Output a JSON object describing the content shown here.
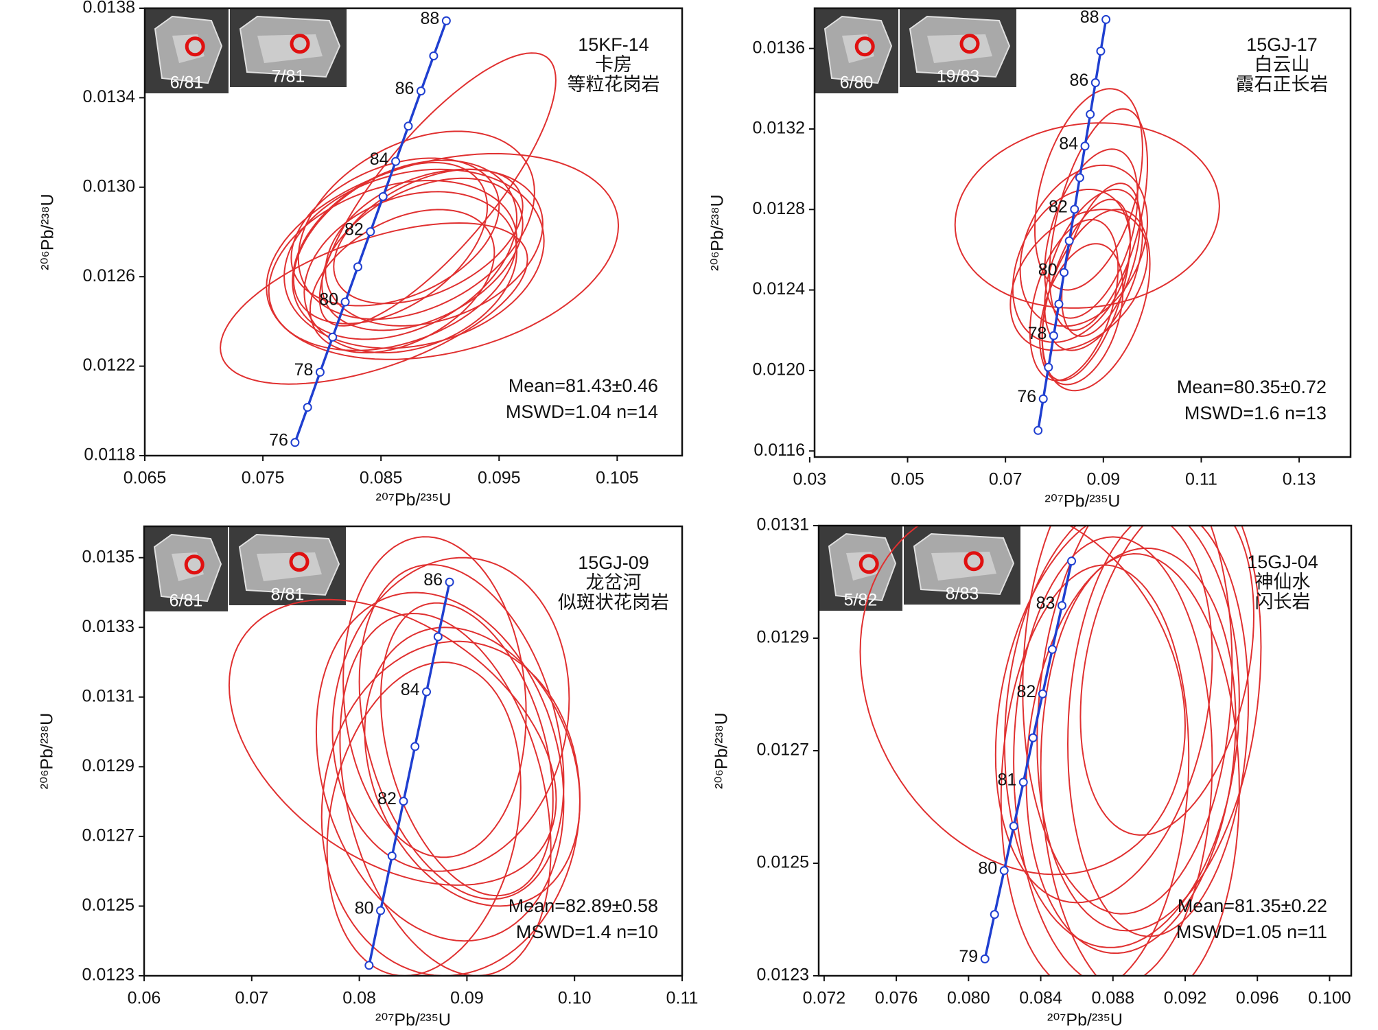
{
  "chart_data": [
    {
      "type": "concordia",
      "xlabel": "²⁰⁷Pb/²³⁵U",
      "ylabel": "²⁰⁶Pb/²³⁸U",
      "sample": "15KF-14",
      "location": "卡房",
      "rock": "等粒花岗岩",
      "mean": "Mean=81.43±0.46",
      "mswd": "MSWD=1.04 n=14",
      "photos": [
        "6/81",
        "7/81"
      ],
      "xlim": [
        0.065,
        0.1105
      ],
      "xticks": [
        0.065,
        0.075,
        0.085,
        0.095,
        0.105
      ],
      "ylim": [
        0.0118,
        0.0138
      ],
      "yticks": [
        0.0118,
        0.0122,
        0.0126,
        {
          "value": 0.013,
          "label": "0.0130"
        },
        0.0134,
        0.0138
      ],
      "concordia": {
        "color": "#1f3fd0",
        "ages": [
          76,
          null,
          78,
          null,
          80,
          null,
          82,
          null,
          84,
          null,
          86,
          null,
          88
        ],
        "x": [
          0.07772,
          0.078782,
          0.079844,
          0.080908,
          0.081973,
          0.083039,
          0.084106,
          0.085175,
          0.086244,
          0.087314,
          0.088385,
          0.089458,
          0.090531
        ],
        "y": [
          0.011859,
          0.012016,
          0.012173,
          0.01233,
          0.012487,
          0.012644,
          0.012801,
          0.012958,
          0.013115,
          0.013273,
          0.01343,
          0.013587,
          0.013744
        ]
      },
      "ellipses": {
        "color": "#e03030",
        "x": [
          0.0898,
          0.0844,
          0.0902,
          0.087,
          0.0885,
          0.086,
          0.089,
          0.0875,
          0.088,
          0.0868,
          0.0895,
          0.0858,
          0.0878,
          0.0862
        ],
        "y": [
          0.01299,
          0.01248,
          0.01269,
          0.01272,
          0.0127,
          0.01265,
          0.01278,
          0.01262,
          0.01283,
          0.01258,
          0.01273,
          0.01275,
          0.01268,
          0.0128
        ],
        "x_err": [
          0.01,
          0.013,
          0.0149,
          0.0095,
          0.0085,
          0.0105,
          0.008,
          0.009,
          0.01,
          0.0078,
          0.0092,
          0.0082,
          0.011,
          0.0088
        ],
        "y_err": [
          0.00061,
          0.00036,
          0.00046,
          0.0004,
          0.00034,
          0.00038,
          0.0003,
          0.00036,
          0.00042,
          0.00032,
          0.00035,
          0.00036,
          0.0004,
          0.00033
        ],
        "rho": [
          0.8,
          0.55,
          0.3,
          0.35,
          0.4,
          0.3,
          0.45,
          0.25,
          0.35,
          0.4,
          0.3,
          0.45,
          0.2,
          0.35
        ]
      }
    },
    {
      "type": "concordia",
      "xlabel": "²⁰⁷Pb/²³⁵U",
      "ylabel": "²⁰⁶Pb/²³⁸U",
      "sample": "15GJ-17",
      "location": "白云山",
      "rock": "霞石正长岩",
      "mean": "Mean=80.35±0.72",
      "mswd": "MSWD=1.6 n=13",
      "photos": [
        "6/80",
        "19/83"
      ],
      "xlim": [
        0.031,
        0.1405
      ],
      "xticks": [
        0.03,
        0.05,
        0.07,
        0.09,
        0.11,
        0.13
      ],
      "ylim": [
        0.01157,
        0.0138
      ],
      "yticks": [
        0.0116,
        {
          "value": 0.012,
          "label": "0.0120"
        },
        0.0124,
        0.0128,
        0.0132,
        0.0136
      ],
      "concordia": {
        "color": "#1f3fd0",
        "ages": [
          null,
          76,
          null,
          78,
          null,
          80,
          null,
          82,
          null,
          84,
          null,
          86,
          null,
          88
        ],
        "x": [
          0.076659,
          0.07772,
          0.078782,
          0.079844,
          0.080908,
          0.081973,
          0.083039,
          0.084106,
          0.085175,
          0.086244,
          0.087314,
          0.088385,
          0.089458,
          0.090531
        ],
        "y": [
          0.011702,
          0.011859,
          0.012016,
          0.012173,
          0.01233,
          0.012487,
          0.012644,
          0.012801,
          0.012958,
          0.013115,
          0.013273,
          0.01343,
          0.013587,
          0.013744
        ]
      },
      "ellipses": {
        "color": "#e03030",
        "x": [
          0.0867,
          0.087,
          0.089,
          0.086,
          0.085,
          0.088,
          0.0865,
          0.084,
          0.0895,
          0.0855,
          0.0875,
          0.0835,
          0.0885
        ],
        "y": [
          0.01277,
          0.0129,
          0.01275,
          0.01262,
          0.01245,
          0.0125,
          0.0124,
          0.01235,
          0.01255,
          0.01228,
          0.01268,
          0.01252,
          0.01235
        ],
        "x_err": [
          0.027,
          0.011,
          0.01,
          0.013,
          0.014,
          0.01,
          0.009,
          0.009,
          0.008,
          0.0085,
          0.0095,
          0.012,
          0.011
        ],
        "y_err": [
          0.00046,
          0.0005,
          0.00055,
          0.0004,
          0.00035,
          0.0004,
          0.00045,
          0.0004,
          0.00038,
          0.00035,
          0.00042,
          0.00038,
          0.00045
        ],
        "rho": [
          0.1,
          0.4,
          0.5,
          0.3,
          0.35,
          0.45,
          0.55,
          0.4,
          0.5,
          0.35,
          0.45,
          0.3,
          0.4
        ]
      }
    },
    {
      "type": "concordia",
      "xlabel": "²⁰⁷Pb/²³⁵U",
      "ylabel": "²⁰⁶Pb/²³⁸U",
      "sample": "15GJ-09",
      "location": "龙岔河",
      "rock": "似斑状花岗岩",
      "mean": "Mean=82.89±0.58",
      "mswd": "MSWD=1.4 n=10",
      "photos": [
        "6/81",
        "8/81"
      ],
      "xlim": [
        0.06,
        0.11
      ],
      "xticks": [
        0.06,
        0.07,
        0.08,
        0.09,
        {
          "value": 0.1,
          "label": "0.10"
        },
        0.11
      ],
      "ylim": [
        0.0123,
        0.01359
      ],
      "yticks": [
        0.0123,
        0.0125,
        0.0127,
        0.0129,
        0.0131,
        0.0133,
        0.0135
      ],
      "concordia": {
        "color": "#1f3fd0",
        "ages": [
          null,
          80,
          null,
          82,
          null,
          84,
          null,
          86
        ],
        "x": [
          0.080908,
          0.081973,
          0.083039,
          0.084106,
          0.085175,
          0.086244,
          0.087314,
          0.088385
        ],
        "y": [
          0.01233,
          0.012487,
          0.012644,
          0.012801,
          0.012958,
          0.013115,
          0.013273,
          0.01343
        ]
      },
      "ellipses": {
        "color": "#e03030",
        "x": [
          0.0831,
          0.0895,
          0.09,
          0.0885,
          0.0875,
          0.088,
          0.086,
          0.0905,
          0.0885,
          0.087
        ],
        "y": [
          0.01297,
          0.013,
          0.01295,
          0.01305,
          0.0129,
          0.01282,
          0.01275,
          0.0129,
          0.01278,
          0.0131
        ],
        "x_err": [
          0.0152,
          0.0095,
          0.008,
          0.011,
          0.0115,
          0.0098,
          0.009,
          0.01,
          0.012,
          0.0085
        ],
        "y_err": [
          0.00041,
          0.00048,
          0.00042,
          0.00045,
          0.0005,
          0.00052,
          0.00045,
          0.0004,
          0.00048,
          0.00046
        ],
        "rho": [
          -0.4,
          -0.3,
          -0.35,
          0.1,
          -0.2,
          -0.3,
          0.2,
          -0.25,
          0.05,
          -0.1
        ]
      }
    },
    {
      "type": "concordia",
      "xlabel": "²⁰⁷Pb/²³⁵U",
      "ylabel": "²⁰⁶Pb/²³⁸U",
      "sample": "15GJ-04",
      "location": "神仙水",
      "rock": "闪长岩",
      "mean": "Mean=81.35±0.22",
      "mswd": "MSWD=1.05 n=11",
      "photos": [
        "5/82",
        "8/83"
      ],
      "xlim": [
        0.0717,
        0.1012
      ],
      "xticks": [
        0.072,
        0.076,
        {
          "value": 0.08,
          "label": "0.080"
        },
        0.084,
        0.088,
        0.092,
        0.096,
        {
          "value": 0.1,
          "label": "0.100"
        }
      ],
      "ylim": [
        0.0123,
        0.0131
      ],
      "yticks": [
        0.0123,
        0.0125,
        0.0127,
        0.0129,
        0.0131
      ],
      "concordia": {
        "color": "#1f3fd0",
        "ages": [
          79,
          null,
          80,
          null,
          81,
          null,
          82,
          null,
          83,
          null
        ],
        "x": [
          0.080908,
          0.081441,
          0.081973,
          0.082506,
          0.083039,
          0.083573,
          0.084106,
          0.08464,
          0.085175,
          0.085709
        ],
        "y": [
          0.01233,
          0.012409,
          0.012487,
          0.012566,
          0.012644,
          0.012723,
          0.012801,
          0.01288,
          0.012958,
          0.013037
        ]
      },
      "ellipses": {
        "color": "#e03030",
        "x": [
          0.083,
          0.0885,
          0.09,
          0.089,
          0.088,
          0.0905,
          0.0875,
          0.0895,
          0.087,
          0.091,
          0.0888
        ],
        "y": [
          0.01281,
          0.01275,
          0.0128,
          0.0127,
          0.01268,
          0.01275,
          0.01278,
          0.01265,
          0.01265,
          0.01285,
          0.01283
        ],
        "x_err": [
          0.009,
          0.0065,
          0.0062,
          0.0058,
          0.0055,
          0.005,
          0.006,
          0.0055,
          0.0052,
          0.0048,
          0.0058
        ],
        "y_err": [
          0.00033,
          0.0004,
          0.00042,
          0.00036,
          0.0004,
          0.00038,
          0.00035,
          0.0004,
          0.00038,
          0.0003,
          0.00042
        ],
        "rho": [
          -0.2,
          0.1,
          0.2,
          0.15,
          0.0,
          0.1,
          0.25,
          -0.05,
          0.1,
          0.3,
          0.05
        ]
      }
    }
  ]
}
